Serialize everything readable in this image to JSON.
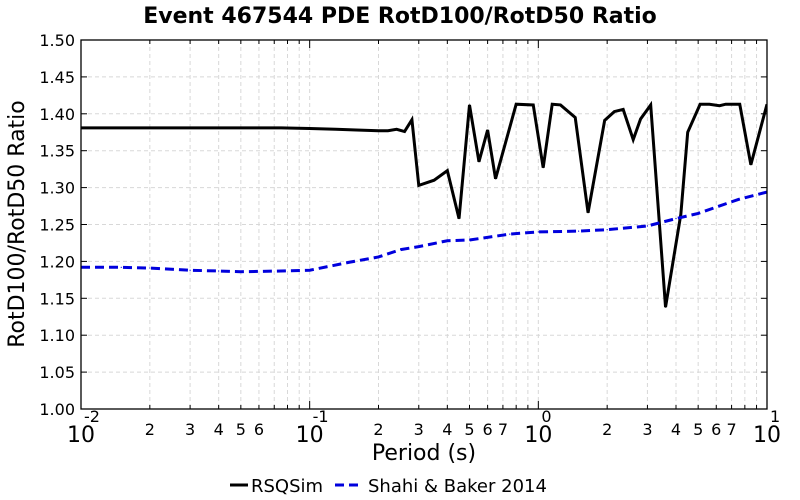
{
  "chart_data": {
    "type": "line",
    "title": "Event 467544 PDE RotD100/RotD50 Ratio",
    "xlabel": "Period (s)",
    "ylabel": "RotD100/RotD50 Ratio",
    "xscale": "log",
    "xlim": [
      0.01,
      10
    ],
    "ylim": [
      1.0,
      1.5
    ],
    "grid": true,
    "legend_position": "bottom-center",
    "major_tick_labels": [
      {
        "base": "10",
        "exp": "-2",
        "value": 0.01
      },
      {
        "base": "10",
        "exp": "-1",
        "value": 0.1
      },
      {
        "base": "10",
        "exp": "0",
        "value": 1
      },
      {
        "base": "10",
        "exp": "1",
        "value": 10
      }
    ],
    "minor_tick_labels": [
      "2",
      "3",
      "4",
      "5",
      "6",
      "2",
      "3",
      "4",
      "5",
      "6",
      "7",
      "2",
      "3",
      "4",
      "5",
      "6",
      "7"
    ],
    "minor_tick_values": [
      0.02,
      0.03,
      0.04,
      0.05,
      0.06,
      0.2,
      0.3,
      0.4,
      0.5,
      0.6,
      0.7,
      2,
      3,
      4,
      5,
      6,
      7
    ],
    "y_tick_labels": [
      "1.00",
      "1.05",
      "1.10",
      "1.15",
      "1.20",
      "1.25",
      "1.30",
      "1.35",
      "1.40",
      "1.45",
      "1.50"
    ],
    "y_tick_values": [
      1.0,
      1.05,
      1.1,
      1.15,
      1.2,
      1.25,
      1.3,
      1.35,
      1.4,
      1.45,
      1.5
    ],
    "series": [
      {
        "name": "RSQSim",
        "color": "#000000",
        "dash": "solid",
        "points": [
          [
            0.01,
            1.381
          ],
          [
            0.02,
            1.381
          ],
          [
            0.03,
            1.381
          ],
          [
            0.04,
            1.381
          ],
          [
            0.05,
            1.381
          ],
          [
            0.06,
            1.381
          ],
          [
            0.075,
            1.381
          ],
          [
            0.1,
            1.38
          ],
          [
            0.13,
            1.379
          ],
          [
            0.16,
            1.378
          ],
          [
            0.2,
            1.377
          ],
          [
            0.22,
            1.377
          ],
          [
            0.24,
            1.379
          ],
          [
            0.26,
            1.376
          ],
          [
            0.28,
            1.392
          ],
          [
            0.3,
            1.303
          ],
          [
            0.35,
            1.31
          ],
          [
            0.4,
            1.323
          ],
          [
            0.45,
            1.258
          ],
          [
            0.5,
            1.412
          ],
          [
            0.55,
            1.335
          ],
          [
            0.6,
            1.378
          ],
          [
            0.65,
            1.312
          ],
          [
            0.8,
            1.413
          ],
          [
            0.95,
            1.412
          ],
          [
            1.05,
            1.327
          ],
          [
            1.15,
            1.413
          ],
          [
            1.25,
            1.412
          ],
          [
            1.45,
            1.395
          ],
          [
            1.65,
            1.266
          ],
          [
            1.95,
            1.391
          ],
          [
            2.15,
            1.403
          ],
          [
            2.35,
            1.406
          ],
          [
            2.6,
            1.365
          ],
          [
            2.8,
            1.393
          ],
          [
            3.1,
            1.412
          ],
          [
            3.6,
            1.138
          ],
          [
            4.2,
            1.264
          ],
          [
            4.5,
            1.375
          ],
          [
            5.1,
            1.413
          ],
          [
            5.6,
            1.413
          ],
          [
            6.2,
            1.411
          ],
          [
            6.6,
            1.413
          ],
          [
            7.6,
            1.413
          ],
          [
            8.5,
            1.331
          ],
          [
            10.0,
            1.413
          ]
        ]
      },
      {
        "name": "Shahi & Baker 2014",
        "color": "#0000dd",
        "dash": "dashed",
        "points": [
          [
            0.01,
            1.192
          ],
          [
            0.015,
            1.192
          ],
          [
            0.02,
            1.191
          ],
          [
            0.03,
            1.188
          ],
          [
            0.04,
            1.187
          ],
          [
            0.05,
            1.186
          ],
          [
            0.075,
            1.187
          ],
          [
            0.1,
            1.188
          ],
          [
            0.15,
            1.199
          ],
          [
            0.2,
            1.206
          ],
          [
            0.25,
            1.216
          ],
          [
            0.3,
            1.22
          ],
          [
            0.4,
            1.228
          ],
          [
            0.5,
            1.229
          ],
          [
            0.75,
            1.237
          ],
          [
            1.0,
            1.24
          ],
          [
            1.5,
            1.241
          ],
          [
            2.0,
            1.243
          ],
          [
            3.0,
            1.248
          ],
          [
            4.0,
            1.258
          ],
          [
            5.0,
            1.265
          ],
          [
            7.5,
            1.284
          ],
          [
            10.0,
            1.294
          ]
        ]
      }
    ]
  }
}
